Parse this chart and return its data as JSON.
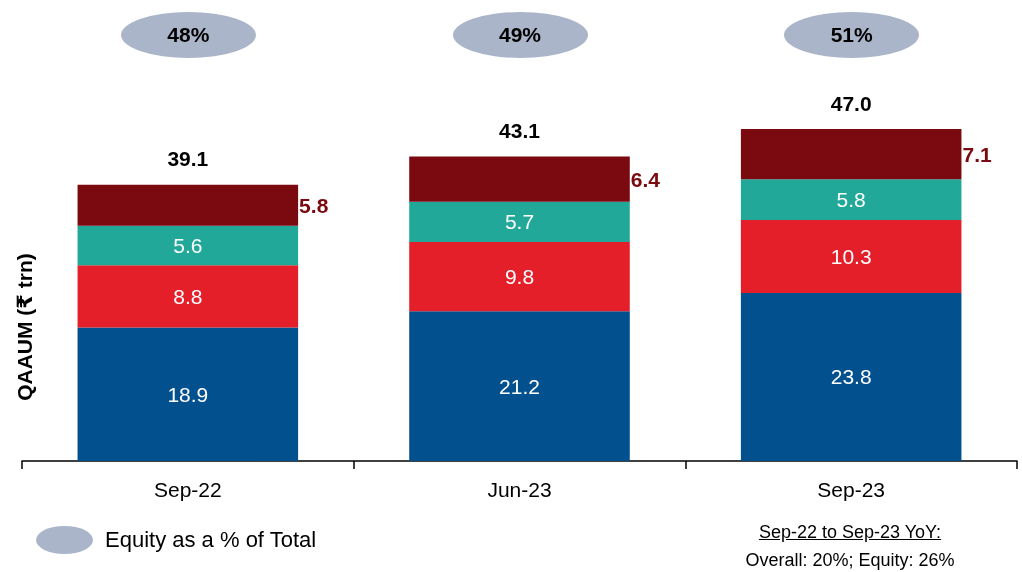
{
  "chart_data": {
    "type": "bar",
    "stacked": true,
    "ylabel": "QAAUM (₹ trn)",
    "categories": [
      "Sep-22",
      "Jun-23",
      "Sep-23"
    ],
    "series": [
      {
        "color": "#02508e",
        "values": [
          18.9,
          21.2,
          23.8
        ]
      },
      {
        "color": "#e41f2a",
        "values": [
          8.8,
          9.8,
          10.3
        ]
      },
      {
        "color": "#22a898",
        "values": [
          5.6,
          5.7,
          5.8
        ]
      },
      {
        "color": "#7a0910",
        "values": [
          5.8,
          6.4,
          7.1
        ]
      }
    ],
    "totals": [
      "39.1",
      "43.1",
      "47.0"
    ],
    "data_labels": true,
    "annotations": [
      "48%",
      "49%",
      "51%",
      "Equity as a % of Total",
      "Sep-22 to Sep-23 YoY:",
      "Overall: 20%; Equity: 26%"
    ]
  }
}
